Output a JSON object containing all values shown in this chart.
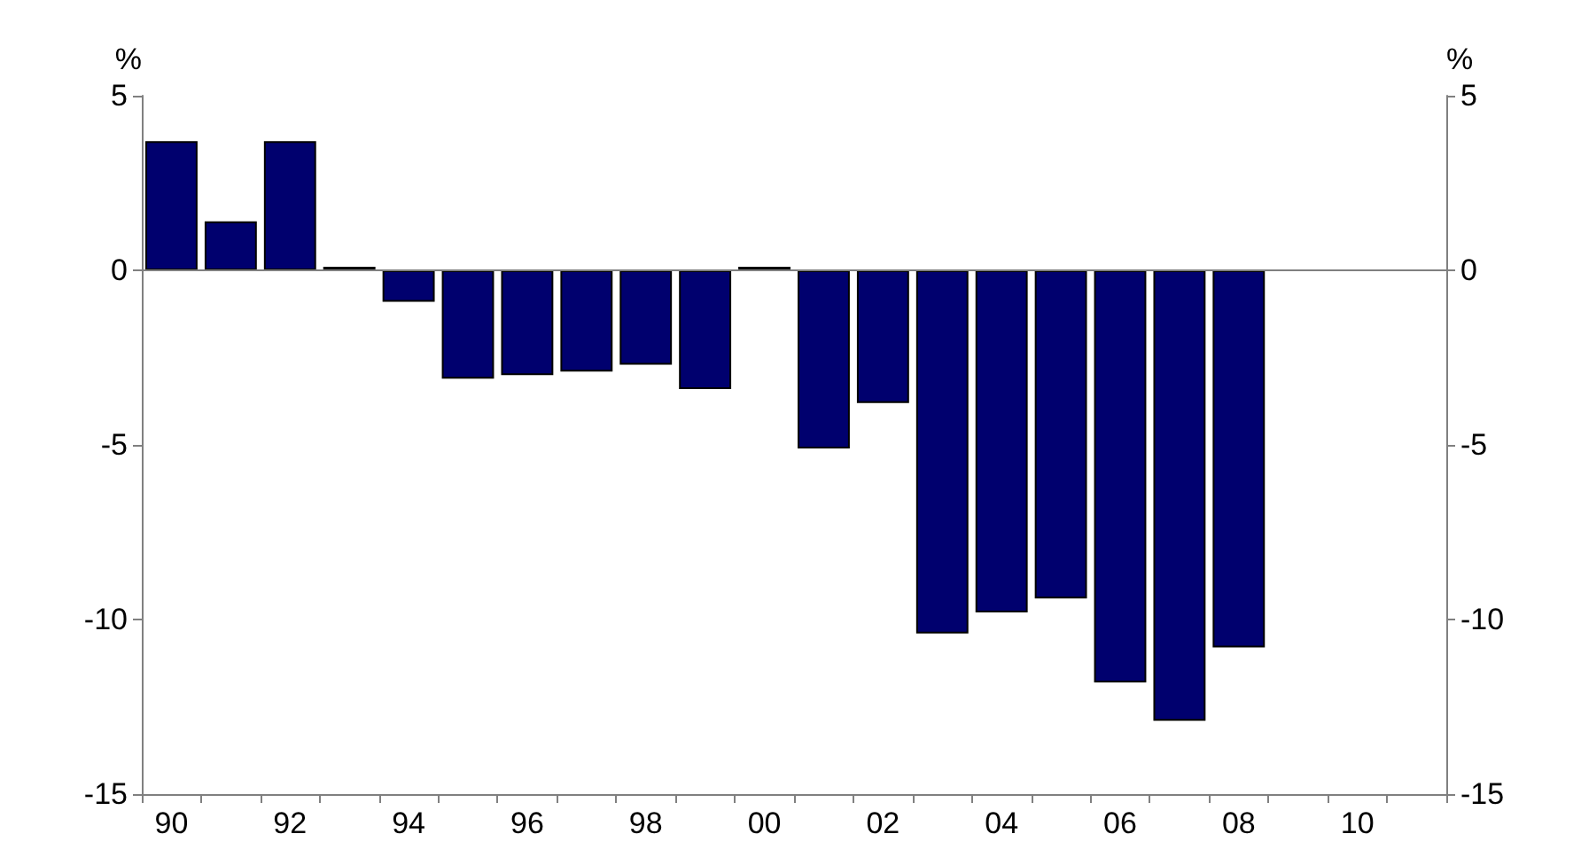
{
  "chart_data": {
    "type": "bar",
    "ylabel": "%",
    "y2label": "%",
    "categories": [
      "90",
      null,
      "92",
      null,
      "94",
      null,
      "96",
      null,
      "98",
      null,
      "00",
      null,
      "02",
      null,
      "04",
      null,
      "06",
      null,
      "08",
      null,
      "10",
      null
    ],
    "values": [
      3.7,
      1.4,
      3.7,
      0.1,
      -0.9,
      -3.1,
      -3.0,
      -2.9,
      -2.7,
      -3.4,
      0.1,
      -5.1,
      -3.8,
      -10.4,
      -9.8,
      -9.4,
      -11.8,
      -12.9,
      -10.8,
      null,
      null,
      null
    ],
    "color": "#00006e",
    "ylim": [
      -15,
      5
    ],
    "yticks": [
      -15,
      -10,
      -5,
      0,
      5
    ],
    "y2lim": [
      -15,
      5
    ],
    "y2ticks": [
      -15,
      -10,
      -5,
      0,
      5
    ],
    "ref_lines": [
      {
        "axis": "y",
        "value": 0,
        "color": "#808080"
      }
    ]
  }
}
